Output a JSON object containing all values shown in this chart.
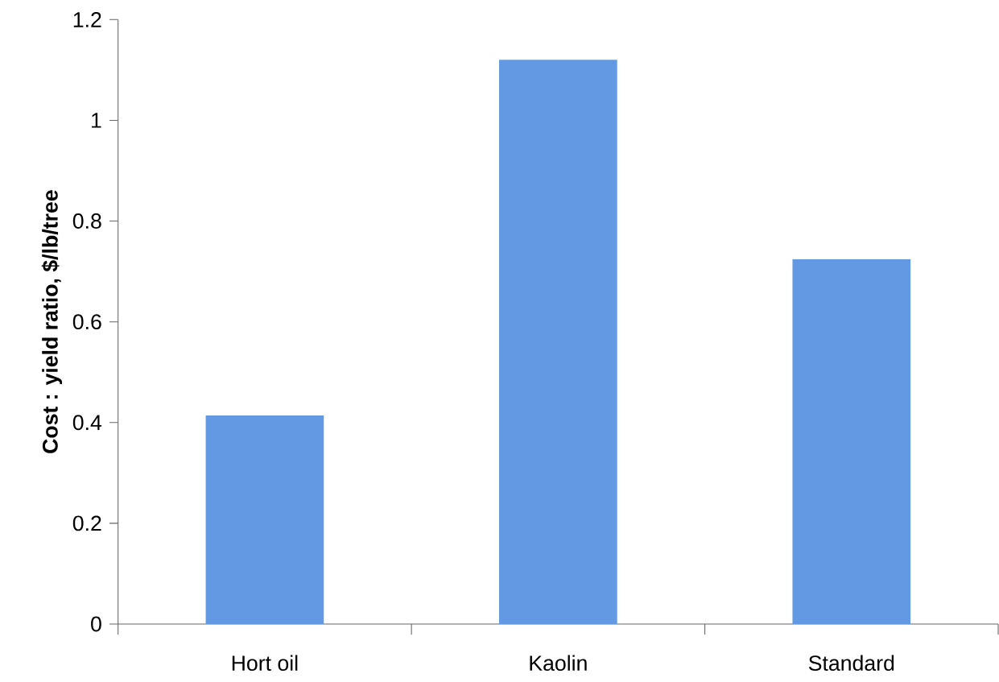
{
  "chart_data": {
    "type": "bar",
    "ylabel": "Cost : yield ratio, $/lb/tree",
    "categories": [
      "Hort oil",
      "Kaolin",
      "Standard"
    ],
    "values": [
      0.414,
      1.12,
      0.724
    ],
    "color": "#6399e3",
    "ylim": [
      0,
      1.2
    ],
    "yticks": [
      0,
      0.2,
      0.4,
      0.6,
      0.8,
      1,
      1.2
    ],
    "grid": false
  }
}
